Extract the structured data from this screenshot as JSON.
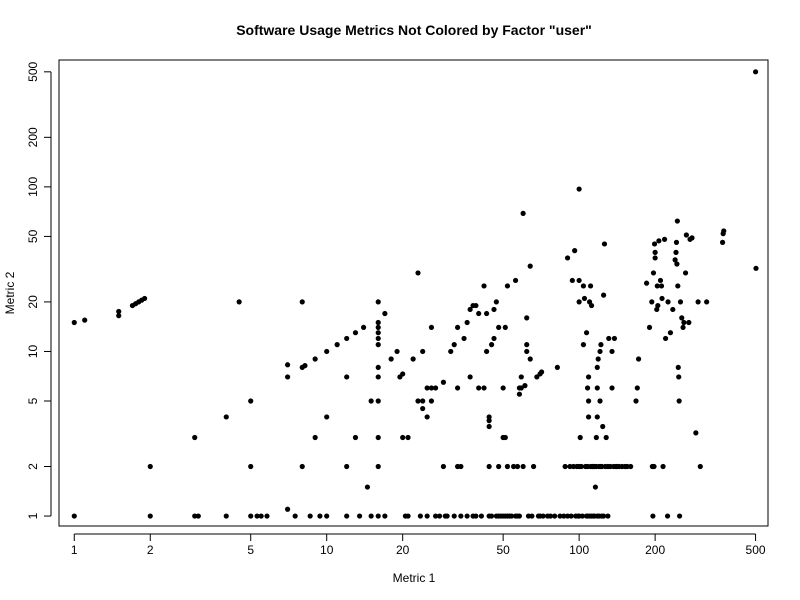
{
  "chart_data": {
    "type": "scatter",
    "title": "Software Usage Metrics Not Colored by Factor \"user\"",
    "xlabel": "Metric 1",
    "ylabel": "Metric 2",
    "x_scale": "log",
    "y_scale": "log",
    "xlim": [
      0.87,
      560
    ],
    "ylim": [
      0.87,
      590
    ],
    "x_ticks": [
      1,
      2,
      5,
      10,
      20,
      50,
      100,
      200,
      500
    ],
    "y_ticks": [
      1,
      2,
      5,
      10,
      20,
      50,
      100,
      200,
      500
    ],
    "x_tick_labels": [
      "1",
      "2",
      "5",
      "10",
      "20",
      "50",
      "100",
      "200",
      "500"
    ],
    "y_tick_labels": [
      "1",
      "2",
      "5",
      "10",
      "20",
      "50",
      "100",
      "200",
      "500"
    ],
    "grid": false,
    "marker_color": "#000000",
    "series": [
      {
        "points": [
          [
            1,
            1
          ],
          [
            1,
            15
          ],
          [
            1.1,
            15.5
          ],
          [
            1.5,
            16.5
          ],
          [
            1.5,
            17.5
          ],
          [
            1.7,
            19
          ],
          [
            1.75,
            19.5
          ],
          [
            1.8,
            20
          ],
          [
            1.85,
            20.5
          ],
          [
            1.9,
            21
          ],
          [
            2,
            1
          ],
          [
            2,
            2
          ],
          [
            3,
            1
          ],
          [
            3,
            3
          ],
          [
            3.1,
            1
          ],
          [
            4,
            1
          ],
          [
            4,
            4
          ],
          [
            4.5,
            20
          ],
          [
            5,
            1
          ],
          [
            5,
            2
          ],
          [
            5,
            5
          ],
          [
            5.3,
            1
          ],
          [
            5.5,
            1
          ],
          [
            5.8,
            1
          ],
          [
            7,
            1.1
          ],
          [
            7,
            7
          ],
          [
            7,
            8.3
          ],
          [
            7.5,
            1
          ],
          [
            8,
            2
          ],
          [
            8,
            8
          ],
          [
            8,
            20
          ],
          [
            8.2,
            8.2
          ],
          [
            8.6,
            1
          ],
          [
            9,
            3
          ],
          [
            9,
            9
          ],
          [
            9.4,
            1
          ],
          [
            10,
            1
          ],
          [
            10,
            4
          ],
          [
            10,
            10
          ],
          [
            11,
            11
          ],
          [
            12,
            1
          ],
          [
            12,
            2
          ],
          [
            12,
            7
          ],
          [
            12,
            12
          ],
          [
            13,
            3
          ],
          [
            13,
            13
          ],
          [
            13.5,
            1
          ],
          [
            14,
            14
          ],
          [
            14.5,
            1.5
          ],
          [
            15,
            1
          ],
          [
            15,
            5
          ],
          [
            16,
            1
          ],
          [
            16,
            2
          ],
          [
            16,
            3
          ],
          [
            16,
            5
          ],
          [
            16,
            7
          ],
          [
            16,
            8
          ],
          [
            16,
            11
          ],
          [
            16,
            12
          ],
          [
            16,
            13
          ],
          [
            16,
            14
          ],
          [
            16,
            15
          ],
          [
            16,
            20
          ],
          [
            17,
            1
          ],
          [
            17,
            17
          ],
          [
            18,
            9
          ],
          [
            19,
            10
          ],
          [
            19.5,
            7
          ],
          [
            20,
            7.3
          ],
          [
            20,
            3
          ],
          [
            20.5,
            1
          ],
          [
            21,
            1
          ],
          [
            21,
            3
          ],
          [
            22,
            9
          ],
          [
            23,
            5
          ],
          [
            23,
            30
          ],
          [
            23.5,
            1
          ],
          [
            24,
            5
          ],
          [
            24,
            4.5
          ],
          [
            24,
            10
          ],
          [
            25,
            1
          ],
          [
            25,
            4
          ],
          [
            25,
            6
          ],
          [
            26,
            6
          ],
          [
            26,
            14
          ],
          [
            26,
            5
          ],
          [
            27,
            1
          ],
          [
            27,
            6
          ],
          [
            28,
            1
          ],
          [
            29,
            2
          ],
          [
            29,
            6.5
          ],
          [
            29.5,
            1
          ],
          [
            30,
            1
          ],
          [
            31,
            10
          ],
          [
            32,
            1
          ],
          [
            32,
            11
          ],
          [
            33,
            2
          ],
          [
            33,
            6
          ],
          [
            33,
            14
          ],
          [
            34,
            1
          ],
          [
            34,
            2
          ],
          [
            35,
            12
          ],
          [
            36,
            1
          ],
          [
            36,
            15
          ],
          [
            37,
            7
          ],
          [
            37,
            18
          ],
          [
            38,
            19
          ],
          [
            38,
            1
          ],
          [
            39,
            1
          ],
          [
            39,
            19
          ],
          [
            40,
            6
          ],
          [
            40,
            17
          ],
          [
            41,
            1
          ],
          [
            42,
            6
          ],
          [
            42,
            25
          ],
          [
            43,
            10
          ],
          [
            43,
            17
          ],
          [
            44,
            1
          ],
          [
            44,
            2
          ],
          [
            44,
            3.5
          ],
          [
            44,
            3.8
          ],
          [
            44,
            4
          ],
          [
            45,
            1
          ],
          [
            45,
            11
          ],
          [
            46,
            12
          ],
          [
            46,
            18
          ],
          [
            47,
            1
          ],
          [
            47,
            20
          ],
          [
            48,
            1
          ],
          [
            48,
            2
          ],
          [
            48,
            14
          ],
          [
            49,
            1
          ],
          [
            50,
            1
          ],
          [
            50,
            3
          ],
          [
            50,
            6
          ],
          [
            51,
            1
          ],
          [
            51,
            3
          ],
          [
            51,
            14
          ],
          [
            52,
            1
          ],
          [
            52,
            2
          ],
          [
            52,
            25
          ],
          [
            53,
            1
          ],
          [
            54,
            1
          ],
          [
            55,
            2
          ],
          [
            56,
            1
          ],
          [
            56,
            27
          ],
          [
            57,
            1
          ],
          [
            57,
            2
          ],
          [
            58,
            1
          ],
          [
            58,
            5.5
          ],
          [
            58,
            6
          ],
          [
            59,
            6
          ],
          [
            59,
            7
          ],
          [
            60,
            2
          ],
          [
            60,
            69
          ],
          [
            61,
            6.2
          ],
          [
            62,
            16
          ],
          [
            62,
            10
          ],
          [
            62,
            11
          ],
          [
            63,
            1
          ],
          [
            64,
            9
          ],
          [
            64,
            33
          ],
          [
            65,
            1
          ],
          [
            66,
            2
          ],
          [
            68,
            7
          ],
          [
            69,
            1
          ],
          [
            70,
            1
          ],
          [
            70,
            7.3
          ],
          [
            71,
            7.5
          ],
          [
            72,
            1
          ],
          [
            75,
            1
          ],
          [
            77,
            1
          ],
          [
            80,
            1
          ],
          [
            82,
            8
          ],
          [
            84,
            1
          ],
          [
            87,
            1
          ],
          [
            88,
            2
          ],
          [
            90,
            1
          ],
          [
            90,
            37
          ],
          [
            92,
            2
          ],
          [
            93,
            1
          ],
          [
            94,
            27
          ],
          [
            95,
            2
          ],
          [
            96,
            41
          ],
          [
            97,
            1
          ],
          [
            98,
            2
          ],
          [
            99,
            1
          ],
          [
            100,
            1
          ],
          [
            100,
            2
          ],
          [
            100,
            20
          ],
          [
            100,
            27
          ],
          [
            100,
            97
          ],
          [
            101,
            3
          ],
          [
            102,
            2
          ],
          [
            103,
            1
          ],
          [
            104,
            11
          ],
          [
            104,
            25
          ],
          [
            105,
            21
          ],
          [
            106,
            2
          ],
          [
            107,
            1
          ],
          [
            107,
            13
          ],
          [
            108,
            1
          ],
          [
            108,
            2
          ],
          [
            108,
            6
          ],
          [
            109,
            5
          ],
          [
            109,
            4
          ],
          [
            109,
            7
          ],
          [
            110,
            1
          ],
          [
            110,
            20
          ],
          [
            111,
            2
          ],
          [
            111,
            25
          ],
          [
            112,
            1
          ],
          [
            112,
            19
          ],
          [
            113,
            2
          ],
          [
            114,
            1
          ],
          [
            114,
            2
          ],
          [
            115,
            1
          ],
          [
            115,
            2
          ],
          [
            116,
            1.5
          ],
          [
            117,
            2
          ],
          [
            117,
            3
          ],
          [
            118,
            1
          ],
          [
            118,
            4
          ],
          [
            118,
            6
          ],
          [
            118,
            8
          ],
          [
            119,
            9
          ],
          [
            120,
            1
          ],
          [
            120,
            2
          ],
          [
            121,
            5
          ],
          [
            121,
            10
          ],
          [
            122,
            2
          ],
          [
            122,
            11
          ],
          [
            123,
            1
          ],
          [
            123,
            2
          ],
          [
            124,
            3.5
          ],
          [
            125,
            1
          ],
          [
            125,
            22
          ],
          [
            126,
            45
          ],
          [
            127,
            2
          ],
          [
            128,
            3
          ],
          [
            130,
            1
          ],
          [
            130,
            2
          ],
          [
            131,
            12
          ],
          [
            133,
            2
          ],
          [
            135,
            6
          ],
          [
            135,
            10
          ],
          [
            137,
            2
          ],
          [
            138,
            12
          ],
          [
            140,
            2
          ],
          [
            141,
            2
          ],
          [
            144,
            2
          ],
          [
            148,
            2
          ],
          [
            152,
            2
          ],
          [
            155,
            2
          ],
          [
            160,
            2
          ],
          [
            168,
            5
          ],
          [
            170,
            6
          ],
          [
            172,
            9
          ],
          [
            185,
            26
          ],
          [
            190,
            14
          ],
          [
            194,
            20
          ],
          [
            195,
            2
          ],
          [
            196,
            1
          ],
          [
            197,
            30
          ],
          [
            198,
            2
          ],
          [
            199,
            45
          ],
          [
            200,
            37
          ],
          [
            200,
            40
          ],
          [
            203,
            18
          ],
          [
            204,
            25
          ],
          [
            205,
            19
          ],
          [
            207,
            47
          ],
          [
            210,
            27
          ],
          [
            212,
            25
          ],
          [
            213,
            21
          ],
          [
            215,
            2
          ],
          [
            218,
            48
          ],
          [
            220,
            12
          ],
          [
            224,
            1
          ],
          [
            225,
            20
          ],
          [
            230,
            13
          ],
          [
            235,
            18
          ],
          [
            240,
            36
          ],
          [
            242,
            40
          ],
          [
            243,
            46
          ],
          [
            244,
            34
          ],
          [
            245,
            62
          ],
          [
            246,
            25
          ],
          [
            247,
            8
          ],
          [
            248,
            7
          ],
          [
            249,
            5
          ],
          [
            250,
            1
          ],
          [
            252,
            20
          ],
          [
            255,
            16
          ],
          [
            258,
            14
          ],
          [
            260,
            15
          ],
          [
            264,
            30
          ],
          [
            266,
            51
          ],
          [
            272,
            15
          ],
          [
            275,
            48
          ],
          [
            280,
            49
          ],
          [
            290,
            3.2
          ],
          [
            296,
            20
          ],
          [
            302,
            2
          ],
          [
            320,
            20
          ],
          [
            370,
            46
          ],
          [
            372,
            52
          ],
          [
            374,
            54
          ],
          [
            500,
            500
          ],
          [
            502,
            32
          ]
        ]
      }
    ]
  }
}
